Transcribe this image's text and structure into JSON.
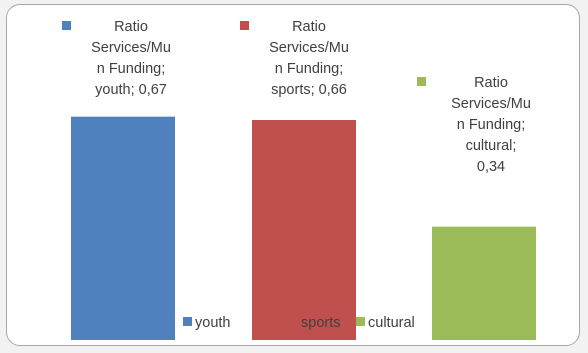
{
  "chart_data": {
    "type": "bar",
    "categories": [
      "youth",
      "sports",
      "cultural"
    ],
    "series": [
      {
        "values": [
          0.67,
          0.66,
          0.34
        ]
      }
    ],
    "data_labels": [
      [
        "Ratio",
        "Services/Mu",
        "n Funding;",
        "youth; 0,67"
      ],
      [
        "Ratio",
        "Services/Mu",
        "n Funding;",
        "sports; 0,66"
      ],
      [
        "Ratio",
        "Services/Mu",
        "n Funding;",
        "cultural;",
        "0,34"
      ]
    ],
    "colors": [
      "#4f81bd",
      "#c0504d",
      "#9bbb59"
    ],
    "legend": {
      "placement": "bottom",
      "entries": [
        "youth",
        "sports",
        "cultural"
      ]
    },
    "ylim": [
      0,
      0.9
    ],
    "grid": false,
    "title": "",
    "xlabel": "",
    "ylabel": ""
  }
}
